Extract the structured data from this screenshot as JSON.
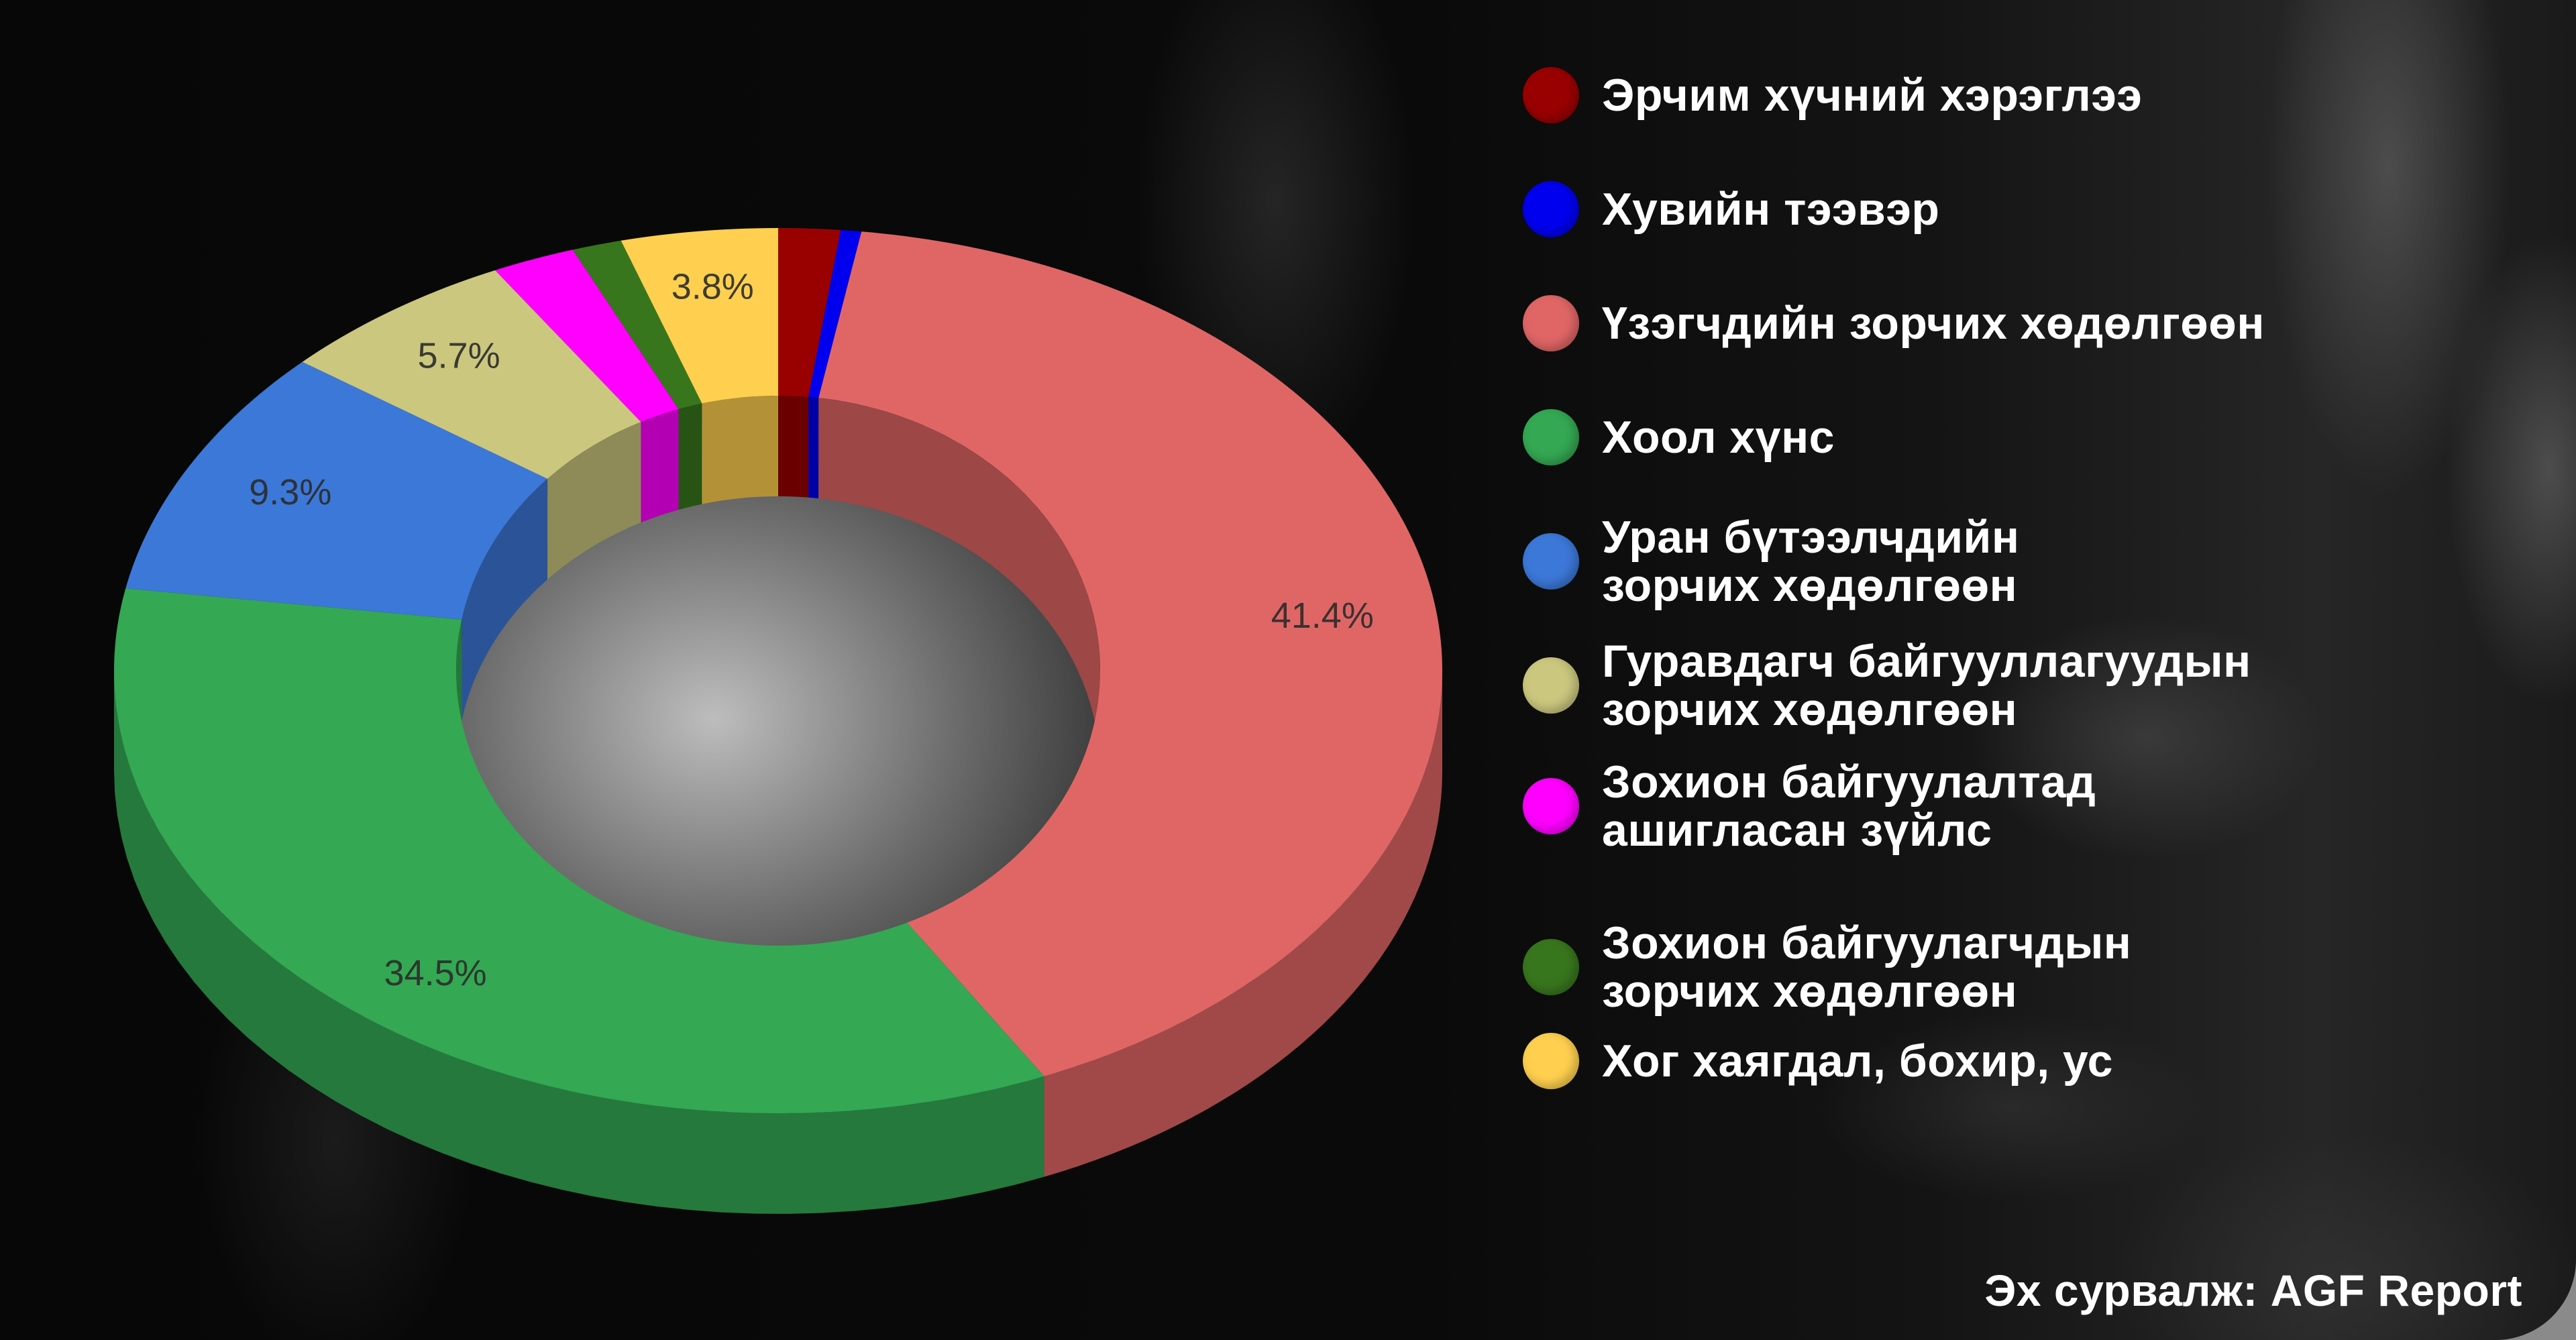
{
  "legend": {
    "items": [
      {
        "label": "Эрчим хүчний хэрэглээ",
        "color": "#990000"
      },
      {
        "label": "Хувийн тээвэр",
        "color": "#0000ee"
      },
      {
        "label": "Үзэгчдийн зорчих хөдөлгөөн",
        "color": "#e06666"
      },
      {
        "label": "Хоол хүнс",
        "color": "#34a853"
      },
      {
        "label": "Уран бүтээлчдийн зорчих хөдөлгөөн",
        "line1": "Уран бүтээлчдийн",
        "line2": "зорчих хөдөлгөөн",
        "color": "#3c78d8"
      },
      {
        "label": "Гуравдагч байгууллагуудын зорчих хөдөлгөөн",
        "line1": "Гуравдагч байгууллагуудын",
        "line2": "зорчих хөдөлгөөн",
        "color": "#cbc77e"
      },
      {
        "label": "Зохион байгуулалтад ашигласан зүйлс",
        "line1": "Зохион байгуулалтад",
        "line2": "ашигласан зүйлс",
        "color": "#ff00ff"
      },
      {
        "label": "Зохион байгуулагчдын зорчих хөдөлгөөн",
        "line1": "Зохион байгуулагчдын",
        "line2": "зорчих хөдөлгөөн",
        "color": "#38761d"
      },
      {
        "label": "Хог хаягдал, бохир, ус",
        "color": "#ffd04f"
      }
    ]
  },
  "source": "Эх сурвалж: AGF Report",
  "chart_data": {
    "type": "pie",
    "style": "3d-donut",
    "title": "",
    "categories": [
      "Эрчим хүчний хэрэглээ",
      "Хувийн тээвэр",
      "Үзэгчдийн зорчих хөдөлгөөн",
      "Хоол хүнс",
      "Уран бүтээлчдийн зорчих хөдөлгөөн",
      "Гуравдагч байгууллагуудын зорчих хөдөлгөөн",
      "Зохион байгуулалтад ашигласан зүйлс",
      "Зохион байгуулагчдын зорчих хөдөлгөөн",
      "Хог хаягдал, бохир, ус"
    ],
    "values": [
      1.5,
      0.5,
      41.4,
      34.5,
      9.3,
      5.7,
      2.0,
      1.2,
      3.8
    ],
    "values_note": "Only 41.4, 34.5, 9.3, 5.7 and 3.8 are printed on the chart. The other four slices are unlabeled, and their values are estimated from slice width.",
    "labels_shown": [
      "",
      "",
      "41.4%",
      "34.5%",
      "9.3%",
      "5.7%",
      "",
      "",
      "3.8%"
    ],
    "colors": [
      "#990000",
      "#0000ee",
      "#e06666",
      "#34a853",
      "#3c78d8",
      "#cbc77e",
      "#ff00ff",
      "#38761d",
      "#ffd04f"
    ],
    "start_angle_deg": 0,
    "direction": "clockwise",
    "legend_position": "right"
  }
}
